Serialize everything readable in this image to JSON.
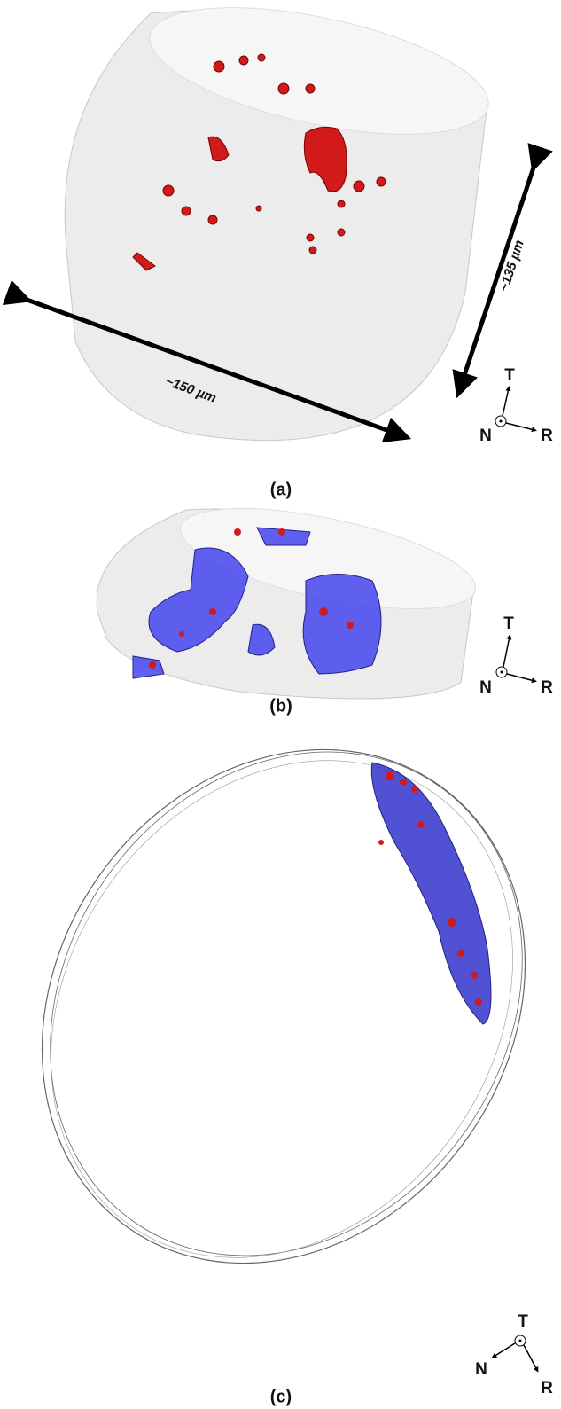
{
  "panels": [
    {
      "label": "(a)",
      "scale_labels": [
        "~150 µm",
        "~135 µm"
      ],
      "axes": [
        "T",
        "N",
        "R"
      ]
    },
    {
      "label": "(b)",
      "axes": [
        "T",
        "N",
        "R"
      ]
    },
    {
      "label": "(c)",
      "axes": [
        "T",
        "N",
        "R"
      ]
    }
  ]
}
